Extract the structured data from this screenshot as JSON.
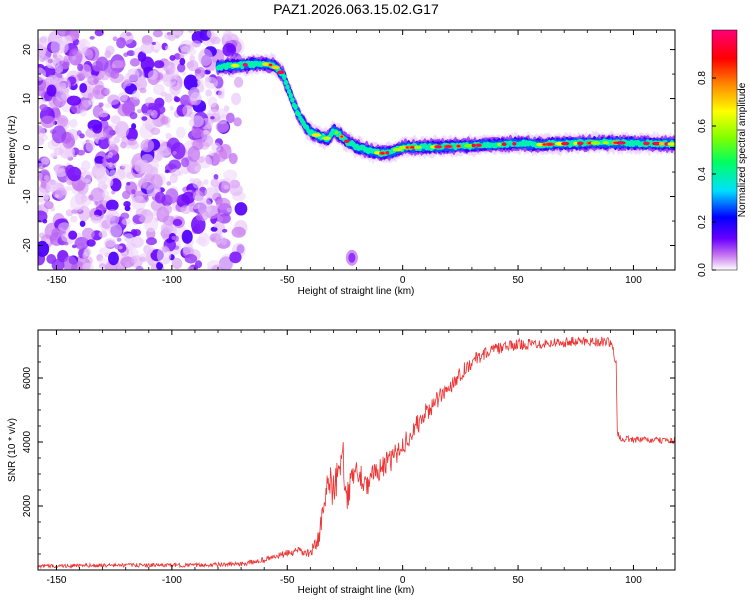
{
  "figure_title": "PAZ1.2026.063.15.02.G17",
  "chart_data": [
    {
      "type": "heatmap",
      "title": "PAZ1.2026.063.15.02.G17",
      "xlabel": "Height of straight line (km)",
      "ylabel": "Frequency (Hz)",
      "xlim": [
        -158,
        118
      ],
      "ylim": [
        -25,
        24
      ],
      "xticks": [
        -150,
        -100,
        -50,
        0,
        50,
        100
      ],
      "xtick_labels": [
        "-150",
        "-100",
        "-50",
        "0",
        "50",
        "100"
      ],
      "yticks": [
        -20,
        -10,
        0,
        10,
        20
      ],
      "ytick_labels": [
        "-20",
        "-10",
        "0",
        "10",
        "20"
      ],
      "colorbar": {
        "label": "Normalized spectral amplitude",
        "range": [
          0,
          1
        ],
        "ticks": [
          0.0,
          0.2,
          0.4,
          0.6,
          0.8
        ],
        "tick_labels": [
          "0.0",
          "0.2",
          "0.4",
          "0.6",
          "0.8"
        ],
        "colors": [
          "#ffffff",
          "#c878f0",
          "#6a00ff",
          "#0000ff",
          "#00e0ff",
          "#00ff60",
          "#80ff00",
          "#ffff00",
          "#ff8000",
          "#ff0000",
          "#ff0078"
        ]
      },
      "ridge": {
        "x": [
          -80,
          -70,
          -62,
          -56,
          -52,
          -50,
          -48,
          -46,
          -44,
          -42,
          -40,
          -36,
          -32,
          -30,
          -27,
          -24,
          -20,
          -15,
          -10,
          -5,
          0,
          10,
          20,
          30,
          40,
          50,
          60,
          70,
          80,
          90,
          100,
          110,
          118
        ],
        "y": [
          16.5,
          16.8,
          17.2,
          16.8,
          15,
          12.5,
          10,
          7.6,
          5.8,
          4.2,
          3.2,
          2.2,
          1.8,
          3.5,
          2.5,
          1.2,
          0.2,
          -0.6,
          -1.2,
          -1.0,
          0,
          0.1,
          0.2,
          0.4,
          0.6,
          0.8,
          0.6,
          0.8,
          0.9,
          1.0,
          0.9,
          0.8,
          0.7
        ]
      },
      "noise_region_x": [
        -158,
        -70
      ],
      "isolated_blob": {
        "x": -22,
        "y": -22.5
      }
    },
    {
      "type": "line",
      "xlabel": "Height of straight line (km)",
      "ylabel": "SNR (10 * v/v)",
      "xlim": [
        -158,
        118
      ],
      "ylim": [
        0,
        7500
      ],
      "xticks": [
        -150,
        -100,
        -50,
        0,
        50,
        100
      ],
      "xtick_labels": [
        "-150",
        "-100",
        "-50",
        "0",
        "50",
        "100"
      ],
      "yticks": [
        2000,
        4000,
        6000
      ],
      "ytick_labels": [
        "2000",
        "4000",
        "6000"
      ],
      "color": "#ee3333",
      "series": [
        {
          "name": "SNR",
          "x": [
            -158,
            -120,
            -90,
            -70,
            -60,
            -50,
            -45,
            -40,
            -36,
            -33,
            -30,
            -28,
            -26,
            -24,
            -22,
            -20,
            -15,
            -10,
            -5,
            0,
            5,
            10,
            15,
            20,
            25,
            30,
            35,
            40,
            50,
            60,
            70,
            80,
            90,
            92.5,
            93,
            95,
            100,
            110,
            118
          ],
          "y": [
            120,
            150,
            150,
            180,
            320,
            520,
            580,
            500,
            1100,
            2500,
            2300,
            3100,
            3300,
            2200,
            2900,
            3100,
            2700,
            3200,
            3400,
            3900,
            4400,
            4900,
            5300,
            5700,
            6150,
            6500,
            6750,
            6900,
            7050,
            7080,
            7120,
            7150,
            7120,
            6500,
            4250,
            4100,
            4080,
            4050,
            4050
          ],
          "noise_amp": [
            60,
            60,
            60,
            70,
            90,
            110,
            130,
            150,
            300,
            500,
            500,
            500,
            500,
            420,
            450,
            450,
            380,
            380,
            360,
            330,
            320,
            300,
            280,
            260,
            240,
            220,
            200,
            180,
            170,
            160,
            160,
            160,
            160,
            120,
            100,
            100,
            100,
            100,
            100
          ]
        }
      ]
    }
  ]
}
